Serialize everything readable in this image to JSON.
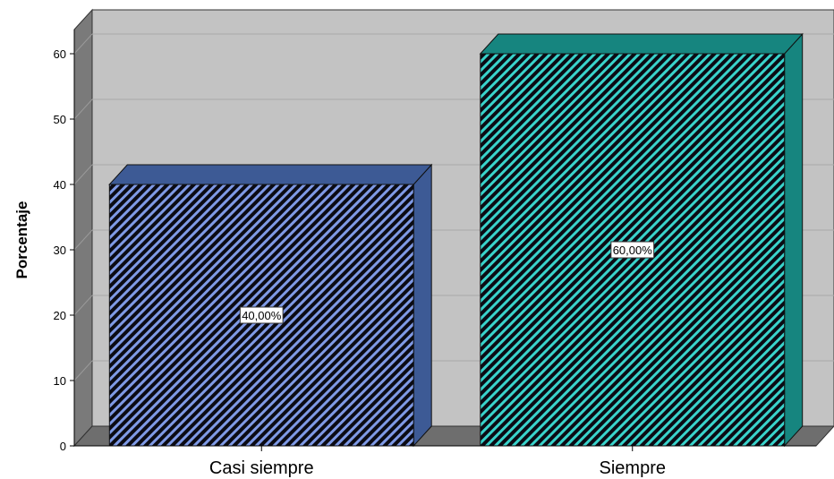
{
  "chart_data": {
    "type": "bar",
    "style": "3d",
    "categories": [
      "Casi siempre",
      "Siempre"
    ],
    "values": [
      40,
      60
    ],
    "data_labels": [
      "40,00%",
      "60,00%"
    ],
    "title": "",
    "xlabel": "",
    "ylabel": "Porcentaje",
    "ylim": [
      0,
      60
    ],
    "yticks": [
      "0",
      "10",
      "20",
      "30",
      "40",
      "50",
      "60"
    ],
    "grid": true,
    "legend": "none",
    "colors": {
      "bars": [
        "#3d5a95",
        "#16857f"
      ],
      "stripes": [
        "#7f9ae6",
        "#39d3cb"
      ],
      "wall": "#c3c3c3",
      "side_wall": "#7a7a7a",
      "floor": "#6e6e6e",
      "gridline": "#a8a8a8"
    }
  }
}
